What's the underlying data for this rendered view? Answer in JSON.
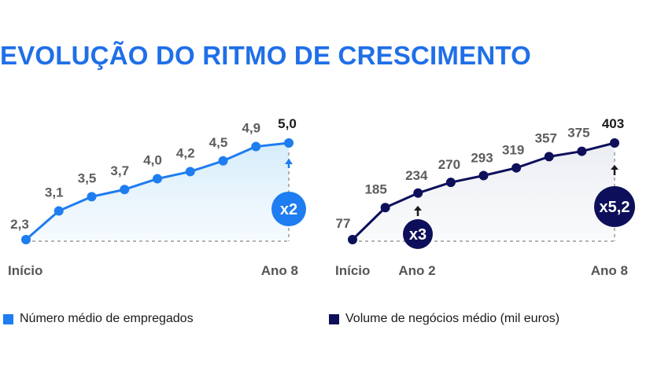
{
  "title": "EVOLUÇÃO DO RITMO DE CRESCIMENTO",
  "colors": {
    "title": "#1f6fe8",
    "employees": "#1e7df0",
    "volume": "#0e0f5a"
  },
  "chart_data": [
    {
      "type": "line",
      "series": [
        {
          "name": "Número médio de empregados",
          "values": [
            2.3,
            3.1,
            3.5,
            3.7,
            4.0,
            4.2,
            4.5,
            4.9,
            5.0
          ],
          "labels": [
            "2,3",
            "3,1",
            "3,5",
            "3,7",
            "4,0",
            "4,2",
            "4,5",
            "4,9",
            "5,0"
          ]
        }
      ],
      "x_tick_labels": {
        "start": "Início",
        "end": "Ano 8"
      },
      "annotations": [
        {
          "text": "x2",
          "at": "Ano 8"
        }
      ],
      "legend": "bottom-left"
    },
    {
      "type": "line",
      "series": [
        {
          "name": "Volume de negócios médio (mil euros)",
          "values": [
            77,
            185,
            234,
            270,
            293,
            319,
            357,
            375,
            403
          ],
          "labels": [
            "77",
            "185",
            "234",
            "270",
            "293",
            "319",
            "357",
            "375",
            "403"
          ]
        }
      ],
      "x_tick_labels": {
        "start": "Início",
        "mid": "Ano 2",
        "end": "Ano 8"
      },
      "annotations": [
        {
          "text": "x3",
          "at": "Ano 2"
        },
        {
          "text": "x5,2",
          "at": "Ano 8"
        }
      ],
      "legend": "bottom-left"
    }
  ]
}
